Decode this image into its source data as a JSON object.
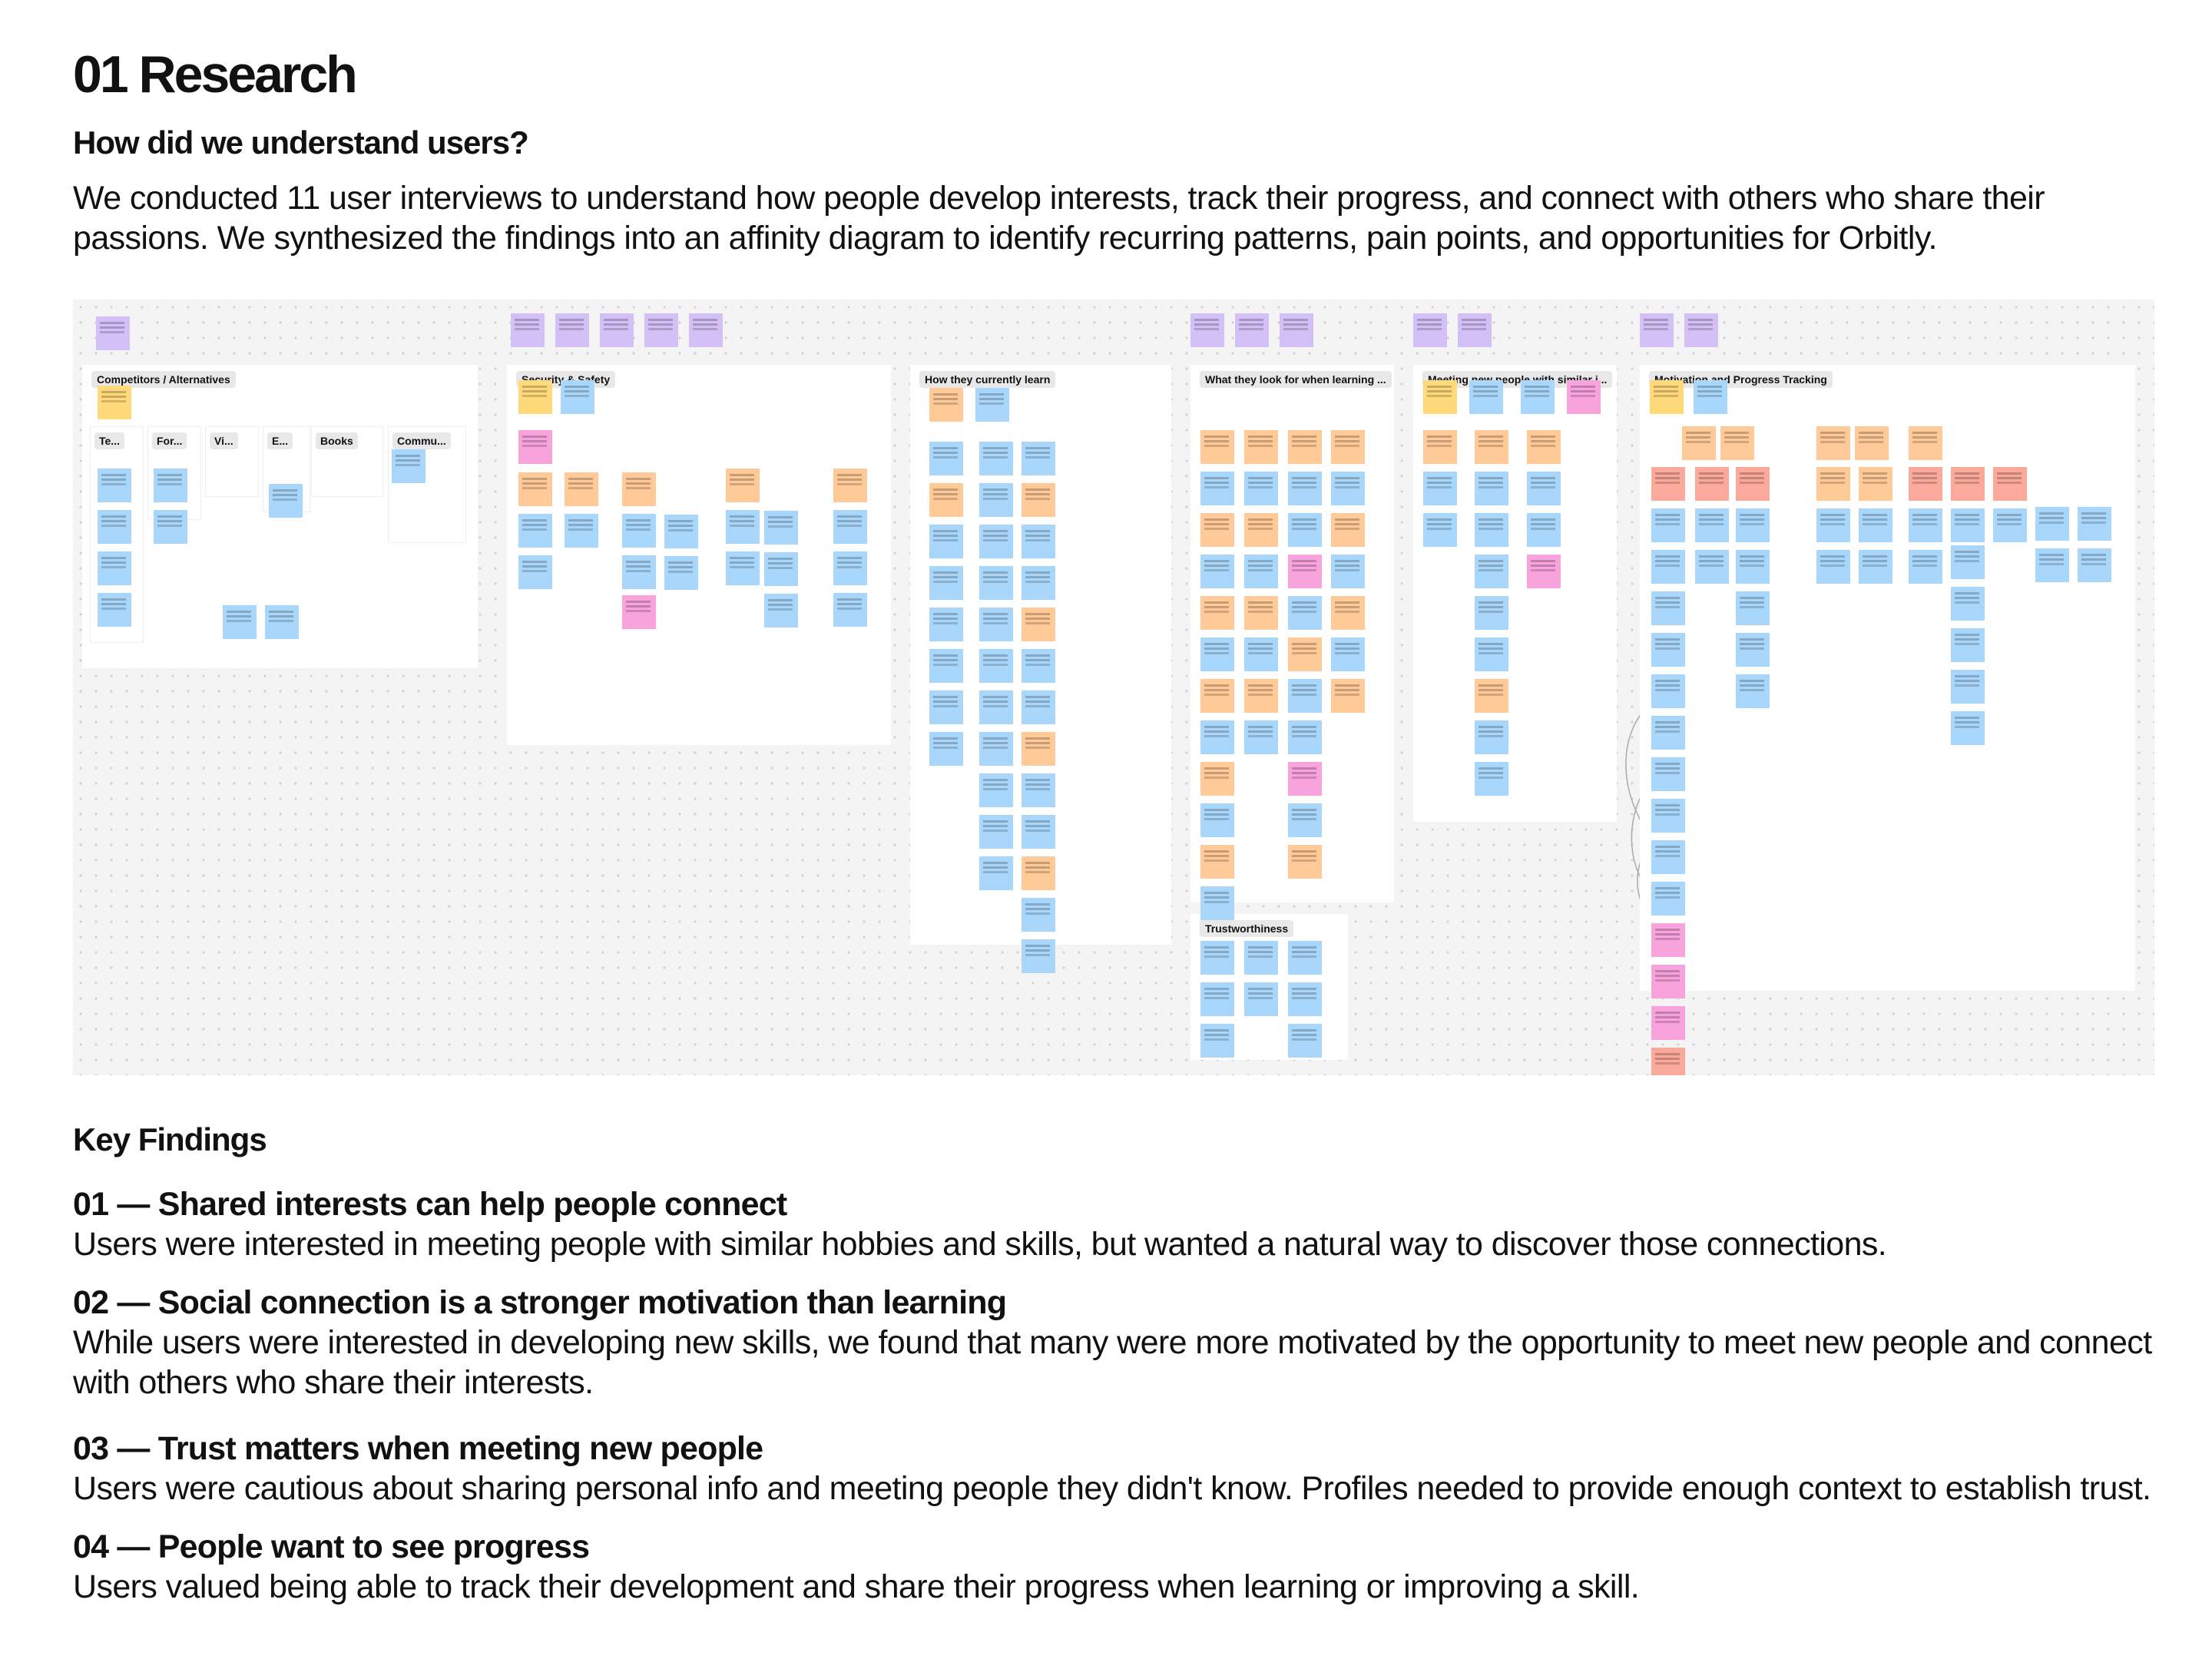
{
  "page": {
    "title": "01 Research",
    "question": "How did we understand users?",
    "intro": "We conducted 11 user interviews to understand how people develop interests, track their progress, and connect with others who share their passions. We synthesized the findings into an affinity diagram to identify recurring patterns, pain points, and opportunities for Orbitly."
  },
  "board": {
    "groups": [
      {
        "title": "Competitors / Alternatives",
        "subgroups": [
          "Te...",
          "For...",
          "Vi...",
          "E...",
          "Books",
          "Commu..."
        ]
      },
      {
        "title": "Security & Safety"
      },
      {
        "title": "How they currently learn"
      },
      {
        "title": "What they look for when learning ..."
      },
      {
        "title": "Meeting new people with similar i..."
      },
      {
        "title": "Motivation and Progress Tracking"
      },
      {
        "title": "Trustworthiness"
      }
    ],
    "note_colors": {
      "purple": "#d3c0f7",
      "yellow": "#ffd97a",
      "orange": "#ffc998",
      "blue": "#a9d7fb",
      "pink": "#f9a3dd",
      "red": "#fba99a"
    }
  },
  "key_findings": {
    "heading": "Key Findings",
    "items": [
      {
        "title": "01 — Shared interests can help people connect",
        "body": "Users were interested in meeting people with similar hobbies and skills, but wanted a natural way to discover those connections."
      },
      {
        "title": "02 — Social connection is a stronger motivation than learning",
        "body": "While users were interested in developing new skills, we found that many were more motivated by the opportunity to meet new people and connect with others who share their interests."
      },
      {
        "title": "03 — Trust matters when meeting new people",
        "body": "Users were cautious about sharing personal info and meeting people they didn't know. Profiles needed to provide enough context to establish trust."
      },
      {
        "title": "04 — People want to see progress",
        "body": "Users valued being able to track their development and share their progress when learning or improving a skill."
      }
    ]
  }
}
